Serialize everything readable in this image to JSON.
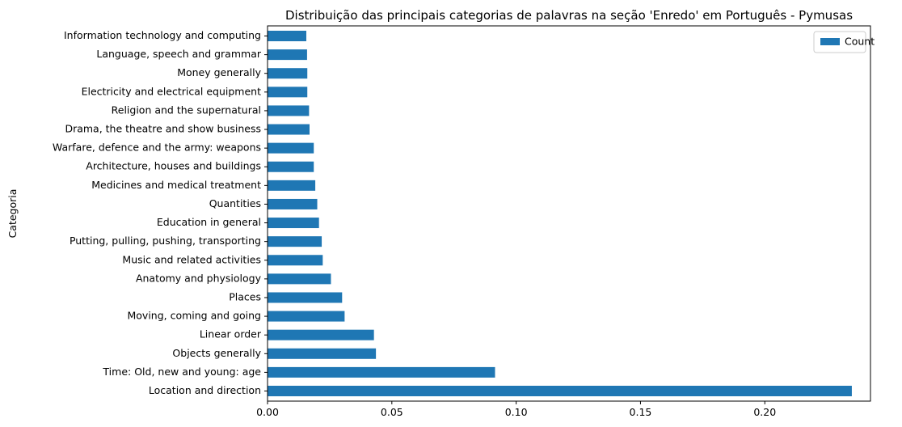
{
  "chart_data": {
    "type": "bar",
    "orientation": "horizontal",
    "title": "Distribuição das principais categorias de palavras na seção 'Enredo' em Português - Pymusas",
    "xlabel": "",
    "ylabel": "Categoria",
    "xlim": [
      0,
      0.2425
    ],
    "xticks": [
      0.0,
      0.05,
      0.1,
      0.15,
      0.2
    ],
    "xtick_labels": [
      "0.00",
      "0.05",
      "0.10",
      "0.15",
      "0.20"
    ],
    "legend": {
      "position": "top-right",
      "entries": [
        "Count"
      ]
    },
    "colors": {
      "bar": "#1f77b4"
    },
    "categories": [
      "Location and direction",
      "Time: Old, new and young: age",
      "Objects generally",
      "Linear order",
      "Moving, coming and going",
      "Places",
      "Anatomy and physiology",
      "Music and related activities",
      "Putting, pulling, pushing, transporting",
      "Education in general",
      "Quantities",
      "Medicines and medical treatment",
      "Architecture, houses and buildings",
      "Warfare, defence and the army: weapons",
      "Drama, the theatre and show business",
      "Religion and the supernatural",
      "Electricity and electrical equipment",
      "Money generally",
      "Language, speech and grammar",
      "Information technology and computing"
    ],
    "series": [
      {
        "name": "Count",
        "values": [
          0.235,
          0.0915,
          0.0436,
          0.0428,
          0.031,
          0.03,
          0.0255,
          0.0222,
          0.0218,
          0.0207,
          0.02,
          0.0192,
          0.0186,
          0.0186,
          0.0169,
          0.0167,
          0.016,
          0.016,
          0.0159,
          0.0156
        ]
      }
    ]
  }
}
